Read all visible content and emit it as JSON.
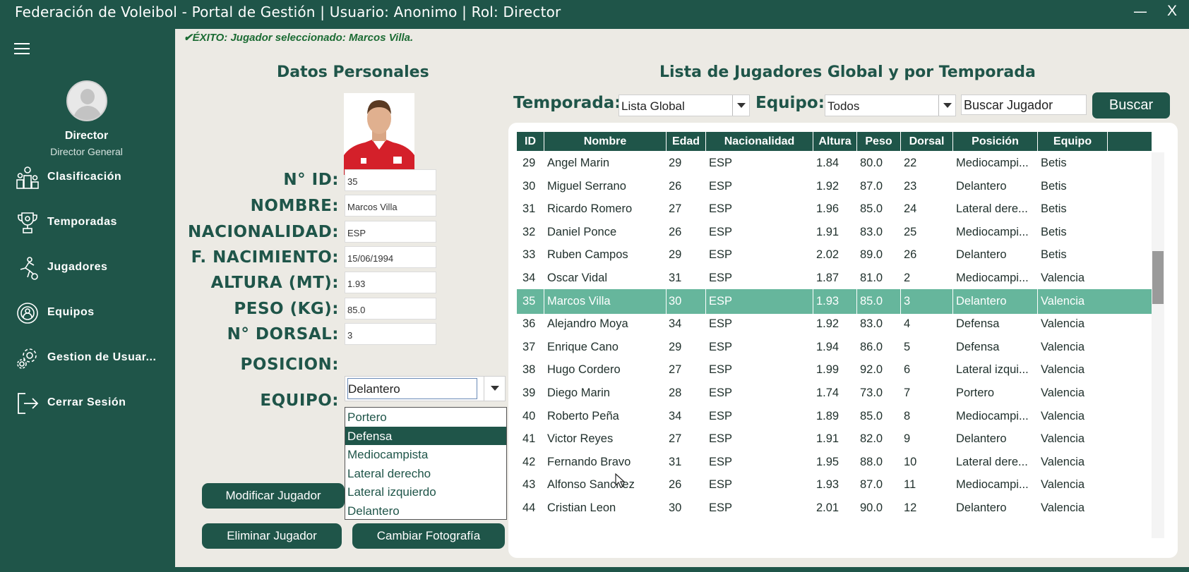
{
  "window": {
    "title": "Federación de Voleibol - Portal de Gestión | Usuario: Anonimo | Rol: Director",
    "minimize": "—",
    "close": "X"
  },
  "sidebar": {
    "user_name": "Director",
    "user_role": "Director General",
    "items": [
      {
        "label": "Clasificación",
        "icon": "podium-icon"
      },
      {
        "label": "Temporadas",
        "icon": "trophy-icon"
      },
      {
        "label": "Jugadores",
        "icon": "player-icon"
      },
      {
        "label": "Equipos",
        "icon": "team-icon"
      },
      {
        "label": "Gestion de Usuar...",
        "icon": "gear-icon"
      },
      {
        "label": "Cerrar Sesión",
        "icon": "logout-icon"
      }
    ]
  },
  "status_message": "✔ÉXITO: Jugador seleccionado: Marcos Villa.",
  "personal": {
    "title": "Datos Personales",
    "labels": {
      "id": "N° ID:",
      "nombre": "NOMBRE:",
      "nacionalidad": "NACIONALIDAD:",
      "nacimiento": "F. NACIMIENTO:",
      "altura": "ALTURA (MT):",
      "peso": "PESO (KG):",
      "dorsal": "N° DORSAL:",
      "posicion": "POSICION:",
      "equipo": "EQUIPO:"
    },
    "values": {
      "id": "35",
      "nombre": "Marcos Villa",
      "nacionalidad": "ESP",
      "nacimiento": "15/06/1994",
      "altura": "1.93",
      "peso": "85.0",
      "dorsal": "3",
      "posicion": "Delantero"
    },
    "position_options": [
      "Portero",
      "Defensa",
      "Mediocampista",
      "Lateral derecho",
      "Lateral izquierdo",
      "Delantero"
    ],
    "highlighted_option": "Defensa",
    "buttons": {
      "modificar": "Modificar Jugador",
      "eliminar": "Eliminar Jugador",
      "foto": "Cambiar Fotografía"
    }
  },
  "list": {
    "title": "Lista de Jugadores Global y por Temporada",
    "temporada_label": "Temporada:",
    "temporada_value": "Lista Global",
    "equipo_label": "Equipo:",
    "equipo_value": "Todos",
    "search_value": "Buscar Jugador",
    "search_button": "Buscar",
    "columns": [
      "ID",
      "Nombre",
      "Edad",
      "Nacionalidad",
      "Altura",
      "Peso",
      "Dorsal",
      "Posición",
      "Equipo"
    ],
    "selected_id": "35",
    "rows": [
      [
        "29",
        "Angel Marin",
        "29",
        "ESP",
        "1.84",
        "80.0",
        "22",
        "Mediocampi...",
        "Betis"
      ],
      [
        "30",
        "Miguel Serrano",
        "26",
        "ESP",
        "1.92",
        "87.0",
        "23",
        "Delantero",
        "Betis"
      ],
      [
        "31",
        "Ricardo Romero",
        "27",
        "ESP",
        "1.96",
        "85.0",
        "24",
        "Lateral dere...",
        "Betis"
      ],
      [
        "32",
        "Daniel Ponce",
        "26",
        "ESP",
        "1.91",
        "83.0",
        "25",
        "Mediocampi...",
        "Betis"
      ],
      [
        "33",
        "Ruben Campos",
        "29",
        "ESP",
        "2.02",
        "89.0",
        "26",
        "Delantero",
        "Betis"
      ],
      [
        "34",
        "Oscar Vidal",
        "31",
        "ESP",
        "1.87",
        "81.0",
        "2",
        "Mediocampi...",
        "Valencia"
      ],
      [
        "35",
        "Marcos Villa",
        "30",
        "ESP",
        "1.93",
        "85.0",
        "3",
        "Delantero",
        "Valencia"
      ],
      [
        "36",
        "Alejandro Moya",
        "34",
        "ESP",
        "1.92",
        "83.0",
        "4",
        "Defensa",
        "Valencia"
      ],
      [
        "37",
        "Enrique Cano",
        "29",
        "ESP",
        "1.94",
        "86.0",
        "5",
        "Defensa",
        "Valencia"
      ],
      [
        "38",
        "Hugo Cordero",
        "27",
        "ESP",
        "1.99",
        "92.0",
        "6",
        "Lateral izqui...",
        "Valencia"
      ],
      [
        "39",
        "Diego Marin",
        "28",
        "ESP",
        "1.74",
        "73.0",
        "7",
        "Portero",
        "Valencia"
      ],
      [
        "40",
        "Roberto Peña",
        "34",
        "ESP",
        "1.89",
        "85.0",
        "8",
        "Mediocampi...",
        "Valencia"
      ],
      [
        "41",
        "Victor Reyes",
        "27",
        "ESP",
        "1.91",
        "82.0",
        "9",
        "Delantero",
        "Valencia"
      ],
      [
        "42",
        "Fernando Bravo",
        "31",
        "ESP",
        "1.95",
        "88.0",
        "10",
        "Lateral dere...",
        "Valencia"
      ],
      [
        "43",
        "Alfonso Sanchez",
        "26",
        "ESP",
        "1.93",
        "87.0",
        "11",
        "Mediocampi...",
        "Valencia"
      ],
      [
        "44",
        "Cristian Leon",
        "30",
        "ESP",
        "2.01",
        "90.0",
        "12",
        "Delantero",
        "Valencia"
      ]
    ]
  },
  "colors": {
    "primary": "#1f5549",
    "background": "#eceae4",
    "selected_row": "#66b69c",
    "success": "#1b6b33"
  }
}
